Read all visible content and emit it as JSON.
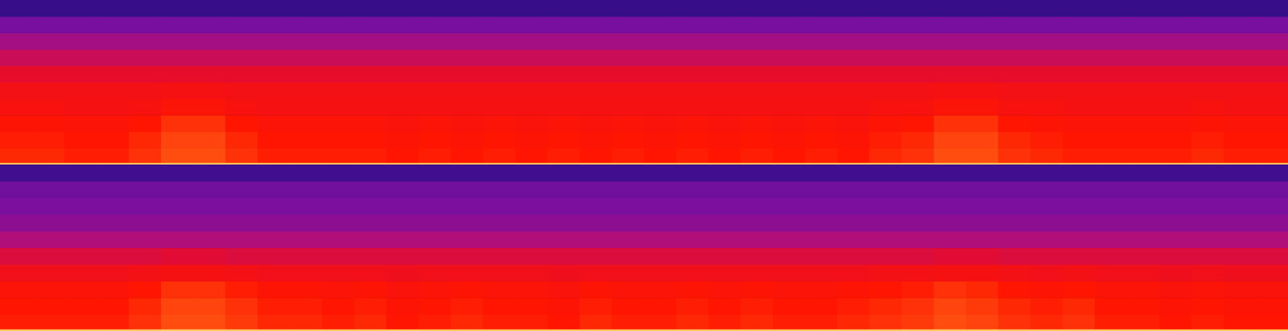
{
  "chart_data": [
    {
      "type": "heatmap",
      "tick_labels": false,
      "xlim": [
        0,
        40
      ],
      "ylim": [
        0,
        1
      ],
      "color_range": [
        0,
        100
      ],
      "x_bins": [
        0,
        1,
        2,
        3,
        4,
        5,
        6,
        7,
        8,
        9,
        10,
        11,
        12,
        13,
        14,
        15,
        16,
        17,
        18,
        19,
        20,
        21,
        22,
        23,
        24,
        25,
        26,
        27,
        28,
        29,
        30,
        31,
        32,
        33,
        34,
        35,
        36,
        37,
        38,
        39,
        40
      ],
      "y_bins": [
        0,
        0.012,
        0.1,
        0.2,
        0.3,
        0.4,
        0.5,
        0.6,
        0.7,
        0.8,
        0.9,
        1
      ],
      "cells": [
        [
          97,
          97,
          97,
          97,
          97,
          97,
          97,
          97,
          97,
          97,
          97,
          97,
          97,
          97,
          97,
          97,
          97,
          97,
          97,
          97,
          97,
          97,
          97,
          97,
          97,
          97,
          97,
          97,
          97,
          97,
          97,
          97,
          97,
          97,
          97,
          97,
          97,
          97,
          97,
          97
        ],
        [
          77,
          77,
          76,
          76,
          78,
          81,
          81,
          78,
          76,
          76,
          76,
          76,
          75,
          76,
          75,
          76,
          75,
          76,
          75,
          76,
          75,
          76,
          75,
          76,
          75,
          76,
          75,
          77,
          78,
          81,
          81,
          78,
          77,
          76,
          76,
          76,
          76,
          77,
          76,
          76
        ],
        [
          76,
          76,
          75,
          75,
          77,
          80,
          80,
          77,
          75,
          75,
          75,
          75,
          74,
          75,
          74,
          75,
          74,
          75,
          74,
          75,
          74,
          75,
          74,
          75,
          74,
          75,
          74,
          76,
          77,
          80,
          80,
          77,
          76,
          75,
          75,
          75,
          75,
          76,
          75,
          75
        ],
        [
          74,
          74,
          73,
          73,
          75,
          78,
          78,
          75,
          73,
          73,
          73,
          73,
          72,
          73,
          72,
          73,
          72,
          73,
          72,
          73,
          72,
          73,
          72,
          73,
          72,
          73,
          72,
          74,
          75,
          78,
          78,
          75,
          74,
          73,
          73,
          73,
          73,
          74,
          73,
          73
        ],
        [
          71,
          71,
          70,
          70,
          71,
          73,
          73,
          71,
          70,
          70,
          70,
          70,
          70,
          70,
          70,
          70,
          70,
          70,
          70,
          70,
          70,
          70,
          70,
          70,
          70,
          70,
          70,
          71,
          71,
          73,
          73,
          71,
          71,
          70,
          70,
          70,
          70,
          71,
          70,
          70
        ],
        [
          69,
          69,
          69,
          69,
          69,
          70,
          70,
          69,
          69,
          69,
          69,
          69,
          69,
          69,
          69,
          69,
          69,
          69,
          69,
          69,
          69,
          69,
          69,
          69,
          69,
          69,
          69,
          69,
          69,
          70,
          70,
          69,
          69,
          69,
          69,
          69,
          69,
          69,
          69,
          69
        ],
        [
          63,
          63,
          63,
          63,
          63,
          63,
          63,
          63,
          63,
          63,
          63,
          63,
          63,
          63,
          63,
          63,
          63,
          63,
          63,
          63,
          63,
          63,
          63,
          63,
          63,
          63,
          63,
          63,
          63,
          63,
          63,
          63,
          63,
          63,
          63,
          63,
          63,
          63,
          63,
          63
        ],
        [
          56,
          56,
          56,
          56,
          56,
          56,
          56,
          56,
          56,
          56,
          56,
          56,
          56,
          56,
          56,
          56,
          56,
          56,
          56,
          56,
          56,
          56,
          56,
          56,
          56,
          56,
          56,
          56,
          56,
          56,
          56,
          56,
          56,
          56,
          56,
          56,
          56,
          56,
          56,
          56
        ],
        [
          47,
          47,
          47,
          47,
          47,
          47,
          47,
          47,
          47,
          47,
          47,
          47,
          47,
          47,
          47,
          47,
          47,
          47,
          47,
          47,
          47,
          47,
          47,
          47,
          47,
          47,
          47,
          47,
          47,
          47,
          47,
          47,
          47,
          47,
          47,
          47,
          47,
          47,
          47,
          47
        ],
        [
          37,
          37,
          37,
          37,
          37,
          37,
          37,
          37,
          37,
          37,
          37,
          37,
          37,
          37,
          37,
          37,
          37,
          37,
          37,
          37,
          37,
          37,
          37,
          37,
          37,
          37,
          37,
          37,
          37,
          37,
          37,
          37,
          37,
          37,
          37,
          37,
          37,
          37,
          37,
          37
        ],
        [
          18,
          18,
          18,
          18,
          18,
          18,
          18,
          18,
          18,
          18,
          18,
          18,
          18,
          18,
          18,
          18,
          18,
          18,
          18,
          18,
          18,
          18,
          18,
          18,
          18,
          18,
          18,
          18,
          18,
          18,
          18,
          18,
          18,
          18,
          18,
          18,
          18,
          18,
          18,
          18
        ]
      ]
    },
    {
      "type": "heatmap",
      "tick_labels": false,
      "xlim": [
        0,
        40
      ],
      "ylim": [
        0,
        1
      ],
      "color_range": [
        0,
        100
      ],
      "x_bins": [
        0,
        1,
        2,
        3,
        4,
        5,
        6,
        7,
        8,
        9,
        10,
        11,
        12,
        13,
        14,
        15,
        16,
        17,
        18,
        19,
        20,
        21,
        22,
        23,
        24,
        25,
        26,
        27,
        28,
        29,
        30,
        31,
        32,
        33,
        34,
        35,
        36,
        37,
        38,
        39,
        40
      ],
      "y_bins": [
        0,
        0.012,
        0.1,
        0.2,
        0.3,
        0.4,
        0.5,
        0.6,
        0.7,
        0.8,
        0.9,
        1
      ],
      "cells": [
        [
          97,
          97,
          97,
          97,
          97,
          97,
          97,
          97,
          97,
          97,
          97,
          97,
          97,
          97,
          97,
          97,
          97,
          97,
          97,
          97,
          97,
          97,
          97,
          97,
          97,
          97,
          97,
          97,
          97,
          97,
          97,
          97,
          97,
          97,
          97,
          97,
          97,
          97,
          97,
          97
        ],
        [
          76,
          76,
          76,
          76,
          78,
          81,
          81,
          79,
          77,
          77,
          76,
          77,
          75,
          76,
          77,
          76,
          76,
          75,
          77,
          76,
          76,
          77,
          76,
          77,
          76,
          76,
          77,
          78,
          79,
          81,
          80,
          78,
          77,
          78,
          76,
          76,
          75,
          76,
          75,
          75
        ],
        [
          75,
          75,
          75,
          75,
          77,
          80,
          80,
          78,
          76,
          76,
          75,
          76,
          74,
          75,
          76,
          75,
          75,
          74,
          76,
          75,
          75,
          76,
          75,
          76,
          75,
          75,
          76,
          77,
          78,
          80,
          79,
          77,
          76,
          77,
          75,
          75,
          74,
          75,
          74,
          74
        ],
        [
          73,
          73,
          73,
          73,
          75,
          78,
          78,
          76,
          74,
          74,
          73,
          74,
          72,
          73,
          74,
          73,
          73,
          72,
          74,
          73,
          73,
          74,
          73,
          74,
          73,
          73,
          74,
          75,
          76,
          78,
          77,
          75,
          74,
          75,
          73,
          73,
          72,
          73,
          72,
          72
        ],
        [
          68,
          68,
          68,
          68,
          69,
          70,
          70,
          69,
          68,
          68,
          68,
          68,
          67,
          68,
          68,
          68,
          68,
          67,
          68,
          68,
          68,
          68,
          68,
          68,
          68,
          68,
          68,
          69,
          69,
          70,
          70,
          69,
          68,
          69,
          68,
          68,
          67,
          68,
          67,
          67
        ],
        [
          60,
          60,
          60,
          60,
          60,
          61,
          61,
          60,
          60,
          60,
          60,
          60,
          60,
          60,
          60,
          60,
          60,
          60,
          60,
          60,
          60,
          60,
          60,
          60,
          60,
          60,
          60,
          60,
          60,
          61,
          61,
          60,
          60,
          60,
          60,
          60,
          60,
          60,
          60,
          60
        ],
        [
          50,
          50,
          50,
          50,
          50,
          50,
          50,
          50,
          50,
          50,
          50,
          50,
          50,
          50,
          50,
          50,
          50,
          50,
          50,
          50,
          50,
          50,
          50,
          50,
          50,
          50,
          50,
          50,
          50,
          50,
          50,
          50,
          50,
          50,
          50,
          50,
          50,
          50,
          50,
          50
        ],
        [
          42,
          42,
          42,
          42,
          42,
          42,
          42,
          42,
          42,
          42,
          42,
          42,
          42,
          42,
          42,
          42,
          42,
          42,
          42,
          42,
          42,
          42,
          42,
          42,
          42,
          42,
          42,
          42,
          42,
          42,
          42,
          42,
          42,
          42,
          42,
          42,
          42,
          42,
          42,
          42
        ],
        [
          38,
          38,
          38,
          38,
          38,
          38,
          38,
          38,
          38,
          38,
          38,
          38,
          38,
          38,
          38,
          38,
          38,
          38,
          38,
          38,
          38,
          38,
          38,
          38,
          38,
          38,
          38,
          38,
          38,
          38,
          38,
          38,
          38,
          38,
          38,
          38,
          38,
          38,
          38,
          38
        ],
        [
          35,
          35,
          35,
          35,
          35,
          35,
          35,
          35,
          35,
          35,
          35,
          35,
          35,
          35,
          35,
          35,
          35,
          35,
          35,
          35,
          35,
          35,
          35,
          35,
          35,
          35,
          35,
          35,
          35,
          35,
          35,
          35,
          35,
          35,
          35,
          35,
          35,
          35,
          35,
          35
        ],
        [
          22,
          22,
          22,
          22,
          22,
          22,
          22,
          22,
          22,
          22,
          22,
          22,
          22,
          22,
          22,
          22,
          22,
          22,
          22,
          22,
          22,
          22,
          22,
          22,
          22,
          22,
          22,
          22,
          22,
          22,
          22,
          22,
          22,
          22,
          22,
          22,
          22,
          22,
          22,
          22
        ]
      ]
    }
  ]
}
